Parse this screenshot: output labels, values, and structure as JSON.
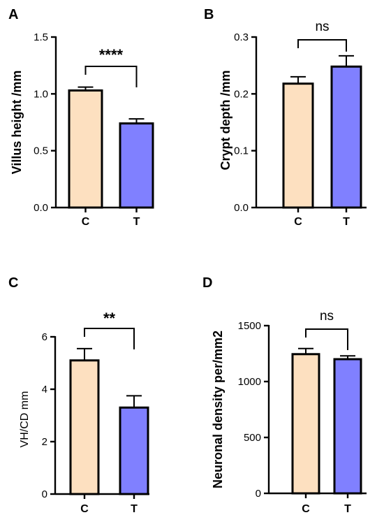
{
  "colors": {
    "C": "#fde0c0",
    "T": "#8080ff",
    "outline": "#000000"
  },
  "chart_data": [
    {
      "panel": "A",
      "type": "bar",
      "categories": [
        "C",
        "T"
      ],
      "values": [
        1.03,
        0.74
      ],
      "errors": [
        0.03,
        0.04
      ],
      "ylabel": "Villus height /mm",
      "ylim": [
        0,
        1.5
      ],
      "yticks": [
        "0.0",
        "0.5",
        "1.0",
        "1.5"
      ],
      "significance": "****",
      "grid": false
    },
    {
      "panel": "B",
      "type": "bar",
      "categories": [
        "C",
        "T"
      ],
      "values": [
        0.218,
        0.248
      ],
      "errors": [
        0.012,
        0.019
      ],
      "ylabel": "Crypt depth /mm",
      "ylim": [
        0,
        0.3
      ],
      "yticks": [
        "0.0",
        "0.1",
        "0.2",
        "0.3"
      ],
      "significance": "ns",
      "grid": false
    },
    {
      "panel": "C",
      "type": "bar",
      "categories": [
        "C",
        "T"
      ],
      "values": [
        5.1,
        3.3
      ],
      "errors": [
        0.45,
        0.45
      ],
      "ylabel": "VH/CD mm",
      "ylim": [
        0,
        6
      ],
      "yticks": [
        "0",
        "2",
        "4",
        "6"
      ],
      "significance": "**",
      "grid": false
    },
    {
      "panel": "D",
      "type": "bar",
      "categories": [
        "C",
        "T"
      ],
      "values": [
        1245,
        1200
      ],
      "errors": [
        50,
        30
      ],
      "ylabel": "Neuronal density per/mm2",
      "ylim": [
        0,
        1500
      ],
      "yticks": [
        "0",
        "500",
        "1000",
        "1500"
      ],
      "significance": "ns",
      "grid": false
    }
  ]
}
